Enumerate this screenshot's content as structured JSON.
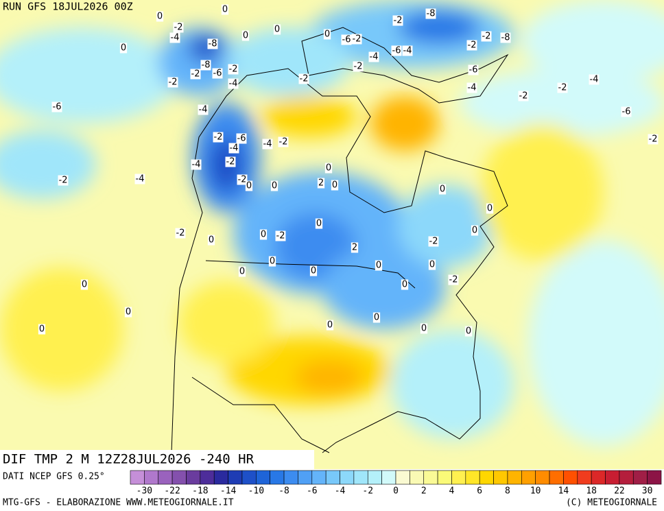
{
  "header": {
    "run": "RUN GFS 18JUL2026 00Z"
  },
  "map": {
    "field_title": "DIF TMP 2 M 12Z28JUL2026 -240 HR",
    "contour_labels": [
      0,
      -2,
      -4,
      0,
      -8,
      -6,
      -2,
      -4,
      -2,
      0,
      -2,
      -6,
      -2,
      -4,
      -2,
      0,
      0,
      -2,
      0,
      -2,
      -6,
      -4,
      -8,
      -2,
      -2,
      -8,
      -6,
      -4,
      -2,
      -4,
      -6,
      -2,
      -2,
      -4,
      -2,
      -6,
      -4,
      -2,
      -4,
      -2,
      -4,
      -2,
      0,
      0,
      2,
      0,
      0,
      0,
      0,
      -2,
      0,
      0,
      2,
      0,
      0,
      0,
      -2,
      0,
      0,
      0,
      0,
      0,
      0,
      0,
      0,
      -2,
      0,
      0,
      0,
      0,
      -2,
      -8,
      -6,
      -2,
      -4
    ]
  },
  "legend": {
    "source": "DATI NCEP GFS 0.25°",
    "colors": [
      "#c58fd8",
      "#b078cc",
      "#9a62bd",
      "#8450ad",
      "#6a3c9e",
      "#4d2d9a",
      "#2a2a9e",
      "#1e3cb4",
      "#1e50c8",
      "#1e64d8",
      "#2878e6",
      "#3c8cf0",
      "#50a0f5",
      "#64b4fa",
      "#78c8fa",
      "#8cd8fa",
      "#a0e6fa",
      "#b4f0fa",
      "#d2fafa",
      "#fafad2",
      "#fafab4",
      "#fafa96",
      "#fafa78",
      "#fff050",
      "#ffe628",
      "#ffd700",
      "#ffc800",
      "#ffb400",
      "#ffa000",
      "#ff8c00",
      "#ff6e00",
      "#ff5000",
      "#f03c1e",
      "#dc2828",
      "#c81e32",
      "#b41e3c",
      "#a01e46",
      "#8c1446"
    ],
    "ticks": [
      -30,
      -22,
      -18,
      -14,
      -10,
      -8,
      -6,
      -4,
      -2,
      0,
      2,
      4,
      6,
      8,
      10,
      14,
      18,
      22,
      30
    ]
  },
  "footer": {
    "left": "MTG-GFS - ELABORAZIONE WWW.METEOGIORNALE.IT",
    "right": "(C) METEOGIORNALE"
  }
}
